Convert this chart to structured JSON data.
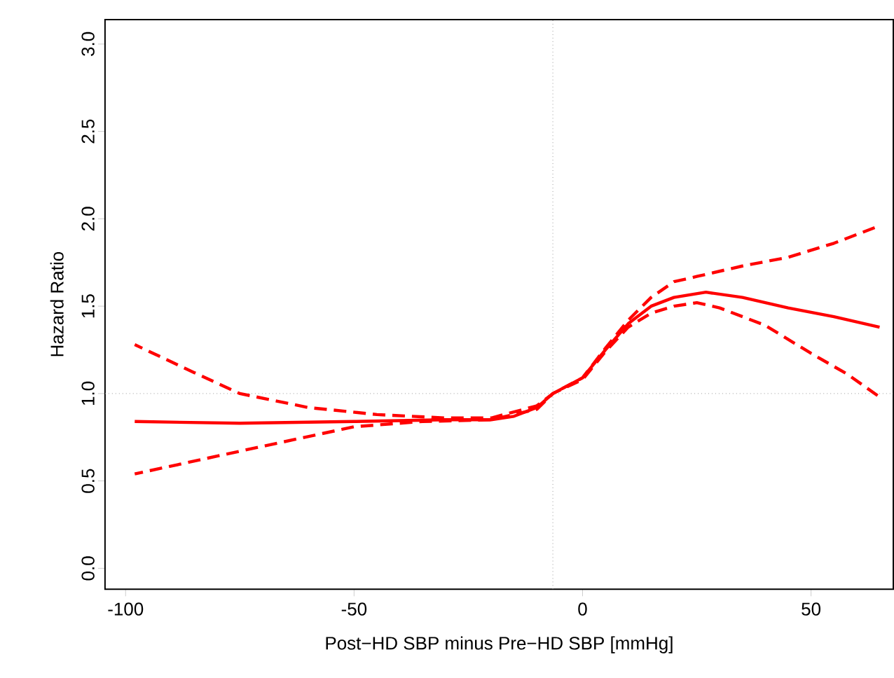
{
  "chart_data": {
    "type": "line",
    "xlabel": "Post−HD SBP minus Pre−HD SBP [mmHg]",
    "ylabel": "Hazard Ratio",
    "xlim": [
      -104.5,
      68
    ],
    "ylim": [
      -0.12,
      3.14
    ],
    "xticks": [
      -100,
      -50,
      0,
      50
    ],
    "yticks": [
      {
        "value": 0,
        "label": "0.0"
      },
      {
        "value": 0.5,
        "label": "0.5"
      },
      {
        "value": 1,
        "label": "1.0"
      },
      {
        "value": 1.5,
        "label": "1.5"
      },
      {
        "value": 2,
        "label": "2.0"
      },
      {
        "value": 2.5,
        "label": "2.5"
      },
      {
        "value": 3,
        "label": "3.0"
      }
    ],
    "grid": false,
    "marker": "none",
    "ref_lines": [
      {
        "axis": "y",
        "value": 1,
        "color": "#999999",
        "line_style": "dotted"
      },
      {
        "axis": "x",
        "value": -6.5,
        "color": "#999999",
        "line_style": "dotted"
      }
    ],
    "series": [
      {
        "color": "#ff0000",
        "line_style": "solid",
        "x": [
          -98,
          -75,
          -50,
          -30,
          -20,
          -15,
          -10,
          -6.5,
          0,
          5,
          10,
          15,
          20,
          27,
          35,
          45,
          55,
          65
        ],
        "values": [
          0.84,
          0.83,
          0.84,
          0.85,
          0.85,
          0.87,
          0.92,
          1.0,
          1.09,
          1.25,
          1.4,
          1.5,
          1.55,
          1.58,
          1.55,
          1.49,
          1.44,
          1.38
        ]
      },
      {
        "color": "#ff0000",
        "line_style": "dashed",
        "x": [
          -98,
          -85,
          -75,
          -60,
          -45,
          -30,
          -20,
          -10,
          -6.5,
          0,
          5,
          10,
          15,
          20,
          25,
          35,
          45,
          55,
          65
        ],
        "values": [
          1.28,
          1.12,
          1.0,
          0.92,
          0.88,
          0.86,
          0.86,
          0.93,
          1.0,
          1.09,
          1.26,
          1.42,
          1.55,
          1.64,
          1.67,
          1.73,
          1.78,
          1.86,
          1.96
        ]
      },
      {
        "color": "#ff0000",
        "line_style": "dashed",
        "x": [
          -98,
          -75,
          -50,
          -35,
          -20,
          -10,
          -6.5,
          0,
          5,
          10,
          15,
          20,
          25,
          30,
          40,
          50,
          58,
          65
        ],
        "values": [
          0.54,
          0.67,
          0.81,
          0.84,
          0.85,
          0.91,
          1.0,
          1.08,
          1.24,
          1.38,
          1.46,
          1.5,
          1.52,
          1.49,
          1.39,
          1.23,
          1.11,
          0.98
        ]
      }
    ]
  }
}
